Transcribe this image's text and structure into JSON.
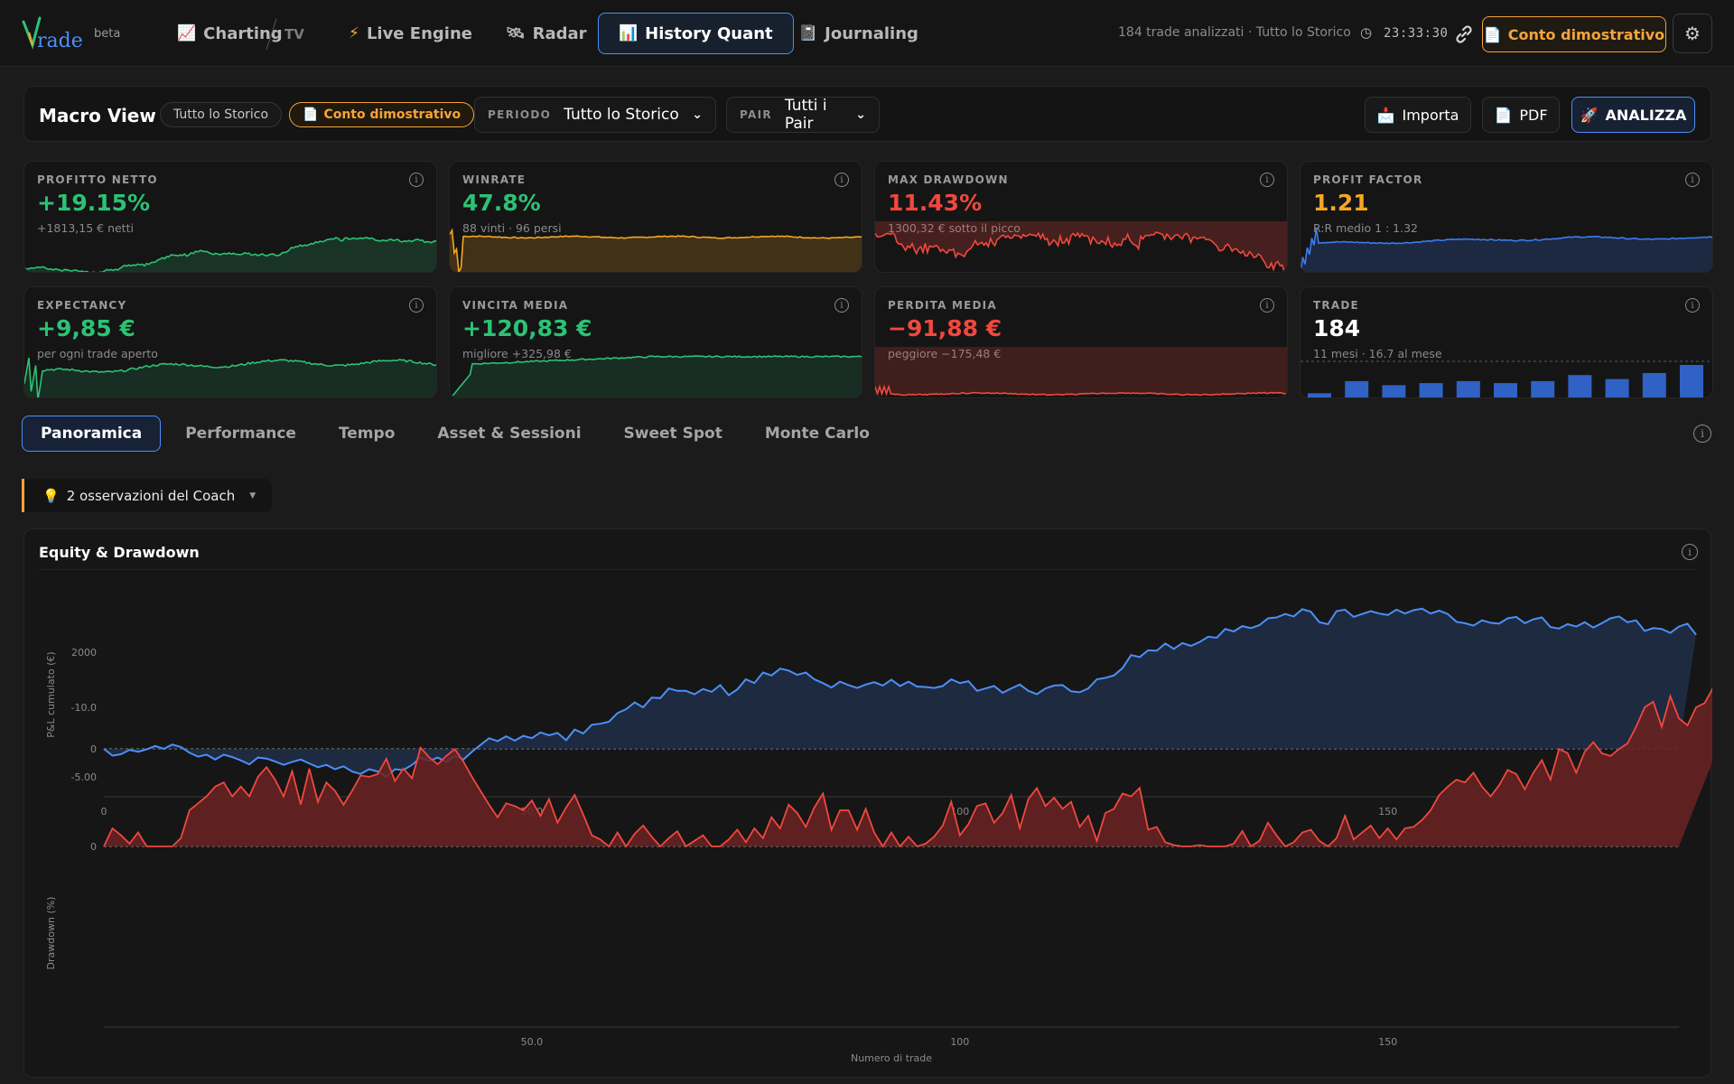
{
  "app": {
    "beta_label": "beta",
    "nav": [
      {
        "label": "Charting",
        "icon": "📈",
        "name": "nav-charting"
      },
      {
        "label": "Live Engine",
        "icon": "⚡",
        "name": "nav-live-engine"
      },
      {
        "label": "Radar",
        "icon": "🛰",
        "name": "nav-radar"
      },
      {
        "label": "History Quant",
        "icon": "📊",
        "name": "nav-history-quant"
      },
      {
        "label": "Journaling",
        "icon": "📓",
        "name": "nav-journaling"
      }
    ],
    "tv_label": "TV",
    "status": "184 trade analizzati · Tutto lo Storico",
    "clock": "23:33:30",
    "demo_account": "Conto dimostrativo",
    "colors": {
      "accent": "#4c8ff7",
      "orange": "#f1a33a",
      "green": "#2cc275",
      "red": "#f0483e",
      "amber": "#f5a623"
    }
  },
  "macro": {
    "title": "Macro View",
    "scope_pill": "Tutto lo Storico",
    "demo_pill": "Conto dimostrativo",
    "period_label": "PERIODO",
    "period_value": "Tutto lo Storico",
    "pair_label": "PAIR",
    "pair_value": "Tutti i Pair",
    "import_label": "Importa",
    "pdf_label": "PDF",
    "analyze_label": "ANALIZZA"
  },
  "kpis": [
    {
      "label": "PROFITTO NETTO",
      "value": "+19.15%",
      "sub": "+1813,15 € netti",
      "color": "#2cc275",
      "spark": "equity-green"
    },
    {
      "label": "WINRATE",
      "value": "47.8%",
      "sub": "88 vinti · 96 persi",
      "color": "#2cc275",
      "spark": "winrate"
    },
    {
      "label": "MAX DRAWDOWN",
      "value": "11.43%",
      "sub": "1300,32 € sotto il picco",
      "color": "#f0483e",
      "spark": "drawdown"
    },
    {
      "label": "PROFIT FACTOR",
      "value": "1.21",
      "sub": "R:R medio 1 : 1.32",
      "color": "#f5a623",
      "spark": "pf"
    },
    {
      "label": "EXPECTANCY",
      "value": "+9,85 €",
      "sub": "per ogni trade aperto",
      "color": "#2cc275",
      "spark": "expectancy"
    },
    {
      "label": "VINCITA MEDIA",
      "value": "+120,83 €",
      "sub": "migliore +325,98 €",
      "color": "#2cc275",
      "spark": "avgwin"
    },
    {
      "label": "PERDITA MEDIA",
      "value": "−91,88 €",
      "sub": "peggiore −175,48 €",
      "color": "#f0483e",
      "spark": "avgloss"
    },
    {
      "label": "TRADE",
      "value": "184",
      "sub": "11 mesi · 16.7 al mese",
      "color": "#ffffff",
      "spark": "bars"
    }
  ],
  "trade_bars": [
    3,
    9,
    7,
    8,
    9,
    8,
    9,
    12,
    10,
    13,
    17
  ],
  "tabs": [
    "Panoramica",
    "Performance",
    "Tempo",
    "Asset & Sessioni",
    "Sweet Spot",
    "Monte Carlo"
  ],
  "coach": {
    "text": "2 osservazioni del Coach",
    "icon": "💡"
  },
  "chart_data": [
    {
      "type": "area",
      "title": "Equity & Drawdown",
      "ylabel": "P&L cumulato (€)",
      "x_ticks": [
        0,
        50,
        100,
        150
      ],
      "x_tick_labels": [
        "0",
        "50.0",
        "100",
        "150"
      ],
      "y_ticks": [
        0,
        2000
      ],
      "ylim": [
        -700,
        3000
      ],
      "xlim": [
        0,
        184
      ],
      "series": [
        {
          "values": [
            0,
            -140,
            -110,
            -20,
            -60,
            -10,
            60,
            0,
            90,
            40,
            -80,
            -160,
            -120,
            -220,
            -120,
            -170,
            -240,
            -320,
            -180,
            -200,
            -260,
            -330,
            -270,
            -220,
            -300,
            -380,
            -330,
            -420,
            -360,
            -470,
            -520,
            -420,
            -470,
            -580,
            -420,
            -440,
            -330,
            -180,
            -250,
            -180,
            -270,
            -150,
            -220,
            -60,
            80,
            220,
            160,
            260,
            170,
            270,
            220,
            340,
            280,
            330,
            180,
            400,
            320,
            500,
            520,
            560,
            740,
            820,
            960,
            860,
            1060,
            1050,
            1250,
            1200,
            1200,
            1130,
            1240,
            1180,
            1320,
            1110,
            1230,
            1440,
            1360,
            1580,
            1520,
            1660,
            1620,
            1530,
            1580,
            1440,
            1360,
            1270,
            1390,
            1320,
            1260,
            1330,
            1380,
            1310,
            1430,
            1300,
            1390,
            1290,
            1280,
            1260,
            1300,
            1440,
            1360,
            1400,
            1200,
            1250,
            1300,
            1160,
            1250,
            1330,
            1200,
            1130,
            1250,
            1310,
            1320,
            1190,
            1170,
            1250,
            1440,
            1470,
            1520,
            1670,
            1940,
            1900,
            2040,
            2030,
            2180,
            2070,
            2190,
            2130,
            2210,
            2320,
            2300,
            2480,
            2430,
            2540,
            2500,
            2560,
            2700,
            2720,
            2790,
            2740,
            2890,
            2840,
            2620,
            2580,
            2850,
            2880,
            2730,
            2790,
            2850,
            2800,
            2770,
            2880,
            2800,
            2870,
            2900,
            2800,
            2860,
            2790,
            2630,
            2600,
            2550,
            2660,
            2610,
            2590,
            2700,
            2730,
            2600,
            2680,
            2720,
            2520,
            2490,
            2580,
            2530,
            2620,
            2510,
            2600,
            2700,
            2740,
            2620,
            2660,
            2440,
            2500,
            2480,
            2400,
            2530,
            2590,
            2360
          ]
        }
      ]
    },
    {
      "type": "area",
      "ylabel": "Drawdown (%)",
      "xlabel": "Numero di trade",
      "x_ticks": [
        50,
        100,
        150
      ],
      "x_tick_labels": [
        "50.0",
        "100",
        "150"
      ],
      "y_ticks": [
        0,
        -5,
        -10
      ],
      "y_tick_labels": [
        "0",
        "-5.00",
        "-10.0"
      ],
      "ylim": [
        -13,
        0
      ],
      "xlim": [
        0,
        184
      ],
      "series": [
        {
          "values": [
            0,
            -1.3,
            -0.8,
            -0.2,
            -1,
            0,
            0,
            0,
            0,
            -0.6,
            -2.6,
            -3.1,
            -3.6,
            -4.3,
            -4.6,
            -3.6,
            -4.3,
            -3.6,
            -5.0,
            -5.7,
            -4.8,
            -3.6,
            -5.4,
            -3.0,
            -5.6,
            -3.2,
            -4.6,
            -4.0,
            -3.0,
            -4.0,
            -5.1,
            -5.0,
            -5.2,
            -6.3,
            -4.7,
            -5.6,
            -4.9,
            -7.1,
            -6.4,
            -5.9,
            -6.5,
            -7.0,
            -6.1,
            -5.0,
            -4.0,
            -3.0,
            -2.1,
            -3.1,
            -2.9,
            -2.6,
            -3.3,
            -2.2,
            -3.4,
            -1.7,
            -2.8,
            -3.7,
            -2.3,
            -0.8,
            -0.5,
            0,
            -1.0,
            0,
            -0.9,
            -1.5,
            -0.7,
            0,
            -0.6,
            -1.1,
            0,
            -0.4,
            -0.8,
            0,
            0,
            -0.5,
            -1.2,
            -0.3,
            -1.3,
            -0.6,
            -2.1,
            -1.3,
            -3.0,
            -2.4,
            -1.4,
            -2.8,
            -3.8,
            -1.2,
            -2.6,
            -2.6,
            -1.2,
            -2.7,
            -1.0,
            0,
            -1.0,
            0,
            -0.7,
            0,
            -0.2,
            -0.7,
            -1.5,
            -3.2,
            -0.8,
            -1.6,
            -2.9,
            -3.1,
            -1.7,
            -2.4,
            -3.7,
            -1.3,
            -3.4,
            -4.2,
            -2.9,
            -3.5,
            -2.7,
            -3.2,
            -1.4,
            -2.2,
            -0.4,
            -2.4,
            -2.7,
            -3.8,
            -3.6,
            -4.2,
            -1.2,
            -1.4,
            -0.3,
            -0.1,
            0,
            0,
            -0.1,
            0,
            0,
            0,
            -0.2,
            -1.1,
            0,
            -0.4,
            -1.7,
            -0.8,
            0,
            -0.3,
            -1.0,
            -1.2,
            -0.4,
            0,
            -0.6,
            -2.2,
            -0.5,
            -1.0,
            -1.5,
            -0.6,
            -1.3,
            -0.5,
            -1.3,
            -1.4,
            -1.9,
            -2.6,
            -3.7,
            -4.3,
            -4.8,
            -4.6,
            -5.3,
            -4.3,
            -3.6,
            -4.4,
            -5.5,
            -5.2,
            -4.1,
            -5.3,
            -6.2,
            -4.8,
            -7.0,
            -6.7,
            -5.3,
            -6.8,
            -7.5,
            -6.7,
            -6.5,
            -7.0,
            -7.4,
            -8.6,
            -10.0,
            -10.4,
            -8.6,
            -10.8,
            -9.2,
            -8.7,
            -10.0,
            -10.3,
            -11.4,
            -11.2,
            -9.3
          ]
        }
      ]
    }
  ]
}
